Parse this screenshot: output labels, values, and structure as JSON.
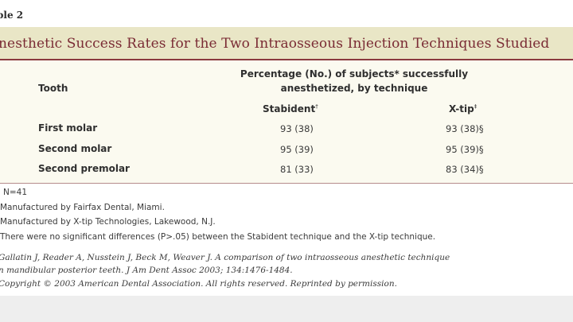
{
  "table": {
    "label": "ble 2",
    "title": "nesthetic Success Rates for the Two Intraosseous Injection Techniques Studied"
  },
  "header": {
    "tooth": "Tooth",
    "percentage_line1": "Percentage (No.) of subjects* successfully",
    "percentage_line2": "anesthetized, by technique",
    "stabident": "Stabident",
    "stabident_mark": "†",
    "xtip": "X-tip",
    "xtip_mark": "‡"
  },
  "rows": [
    {
      "tooth": "First molar",
      "stabident": "93 (38)",
      "xtip": "93 (38)§"
    },
    {
      "tooth": "Second molar",
      "stabident": "95 (39)",
      "xtip": "95 (39)§"
    },
    {
      "tooth": "Second premolar",
      "stabident": "81 (33)",
      "xtip": "83 (34)§"
    }
  ],
  "footnotes": [
    "N=41",
    "Manufactured by Fairfax Dental, Miami.",
    "Manufactured by X-tip Technologies, Lakewood, N.J.",
    "There were no significant differences (P>.05) between the Stabident technique and the X-tip technique."
  ],
  "citation": {
    "line1": "Gallatin J, Reader A, Nusstein J, Beck M, Weaver J. A comparison of two intraosseous anesthetic technique",
    "line2": "n mandibular posterior teeth. J Am Dent Assoc 2003; 134:1476-1484.",
    "line3": "Copyright © 2003 American Dental Association. All rights reserved. Reprinted by permission."
  },
  "colors": {
    "title": "#7a2b34",
    "title_band": "#e9e6c6",
    "rule": "#8a3a3f"
  }
}
